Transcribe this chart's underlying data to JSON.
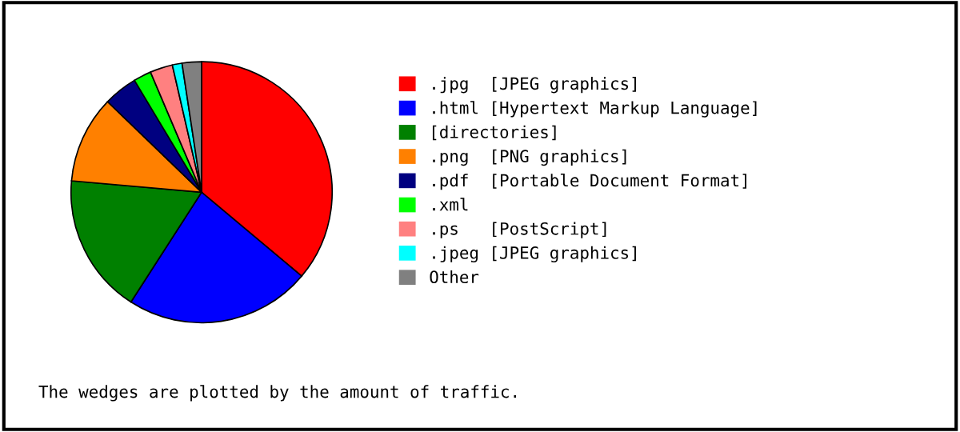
{
  "chart_data": {
    "type": "pie",
    "categories": [
      ".jpg  [JPEG graphics]",
      ".html [Hypertext Markup Language]",
      "[directories]",
      ".png  [PNG graphics]",
      ".pdf  [Portable Document Format]",
      ".xml",
      ".ps   [PostScript]",
      ".jpeg [JPEG graphics]",
      "Other"
    ],
    "values": [
      36.1,
      23,
      17.3,
      10.8,
      4.2,
      2.2,
      2.8,
      1.2,
      2.4
    ],
    "colors": [
      "#ff0000",
      "#0000ff",
      "#008000",
      "#ff8000",
      "#000080",
      "#00ff00",
      "#ff8080",
      "#00ffff",
      "#808080"
    ],
    "legend": "right",
    "annotations": [
      "The wedges are plotted by the amount of traffic."
    ]
  }
}
